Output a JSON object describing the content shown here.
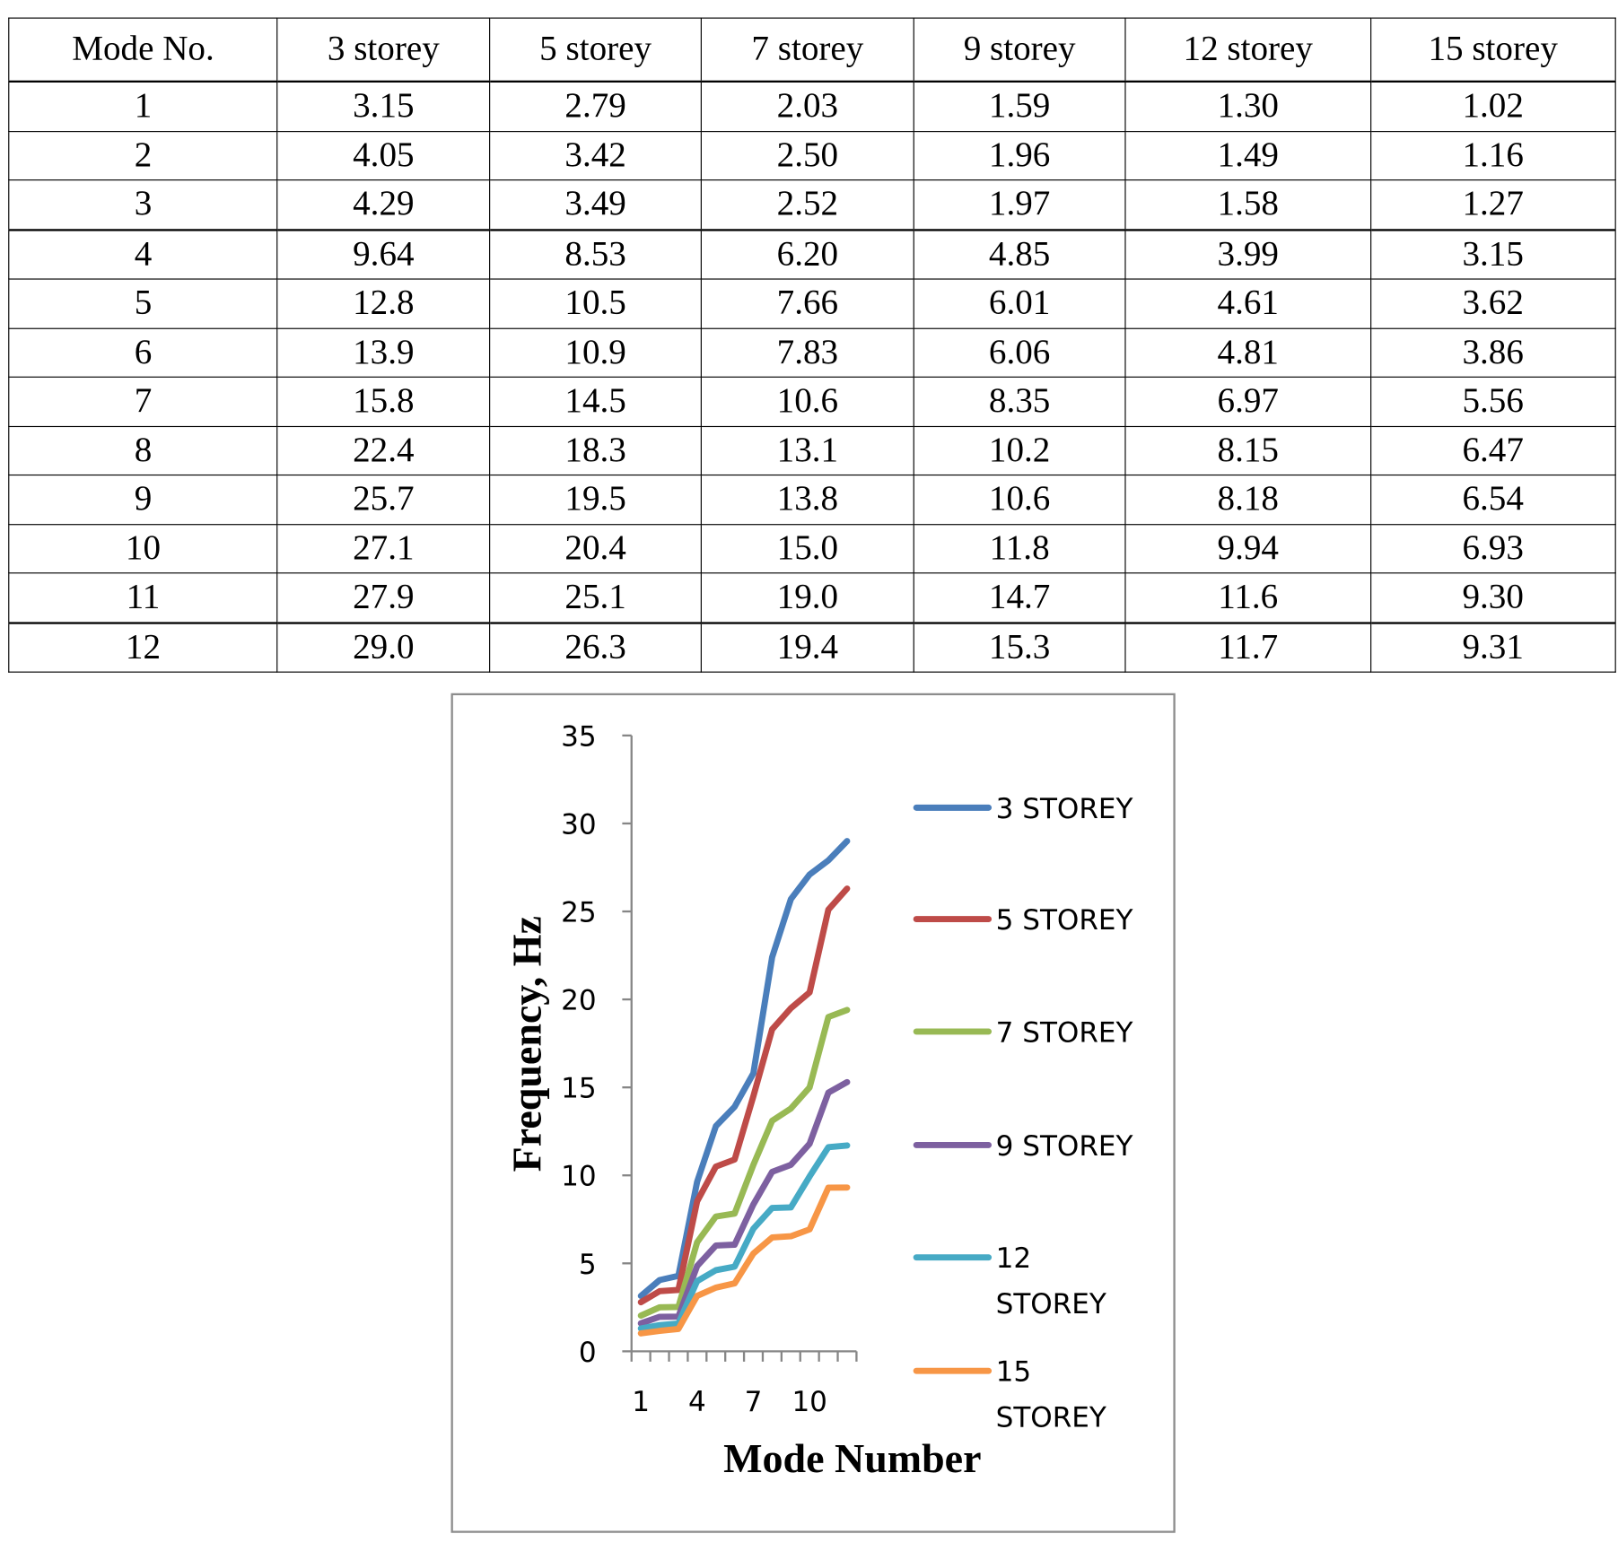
{
  "table": {
    "headers": [
      "Mode No.",
      "3 storey",
      "5 storey",
      "7 storey",
      "9 storey",
      "12 storey",
      "15 storey"
    ],
    "rows": [
      [
        "1",
        "3.15",
        "2.79",
        "2.03",
        "1.59",
        "1.30",
        "1.02"
      ],
      [
        "2",
        "4.05",
        "3.42",
        "2.50",
        "1.96",
        "1.49",
        "1.16"
      ],
      [
        "3",
        "4.29",
        "3.49",
        "2.52",
        "1.97",
        "1.58",
        "1.27"
      ],
      [
        "4",
        "9.64",
        "8.53",
        "6.20",
        "4.85",
        "3.99",
        "3.15"
      ],
      [
        "5",
        "12.8",
        "10.5",
        "7.66",
        "6.01",
        "4.61",
        "3.62"
      ],
      [
        "6",
        "13.9",
        "10.9",
        "7.83",
        "6.06",
        "4.81",
        "3.86"
      ],
      [
        "7",
        "15.8",
        "14.5",
        "10.6",
        "8.35",
        "6.97",
        "5.56"
      ],
      [
        "8",
        "22.4",
        "18.3",
        "13.1",
        "10.2",
        "8.15",
        "6.47"
      ],
      [
        "9",
        "25.7",
        "19.5",
        "13.8",
        "10.6",
        "8.18",
        "6.54"
      ],
      [
        "10",
        "27.1",
        "20.4",
        "15.0",
        "11.8",
        "9.94",
        "6.93"
      ],
      [
        "11",
        "27.9",
        "25.1",
        "19.0",
        "14.7",
        "11.6",
        "9.30"
      ],
      [
        "12",
        "29.0",
        "26.3",
        "19.4",
        "15.3",
        "11.7",
        "9.31"
      ]
    ]
  },
  "chart_data": {
    "type": "line",
    "title": "",
    "xlabel": "Mode Number",
    "ylabel": "Frequency, Hz",
    "x": [
      1,
      2,
      3,
      4,
      5,
      6,
      7,
      8,
      9,
      10,
      11,
      12
    ],
    "x_tick_labels": [
      "1",
      "4",
      "7",
      "10"
    ],
    "y_tick_labels": [
      "0",
      "5",
      "10",
      "15",
      "20",
      "25",
      "30",
      "35"
    ],
    "ylim": [
      0,
      35
    ],
    "grid": false,
    "legend_position": "right",
    "series": [
      {
        "name": "3 STOREY",
        "name_lines": [
          "3 STOREY"
        ],
        "color": "#4a7ebb",
        "values": [
          3.15,
          4.05,
          4.29,
          9.64,
          12.8,
          13.9,
          15.8,
          22.4,
          25.7,
          27.1,
          27.9,
          29.0
        ]
      },
      {
        "name": "5 STOREY",
        "name_lines": [
          "5 STOREY"
        ],
        "color": "#be4b48",
        "values": [
          2.79,
          3.42,
          3.49,
          8.53,
          10.5,
          10.9,
          14.5,
          18.3,
          19.5,
          20.4,
          25.1,
          26.3
        ]
      },
      {
        "name": "7 STOREY",
        "name_lines": [
          "7 STOREY"
        ],
        "color": "#98b954",
        "values": [
          2.03,
          2.5,
          2.52,
          6.2,
          7.66,
          7.83,
          10.6,
          13.1,
          13.8,
          15.0,
          19.0,
          19.4
        ]
      },
      {
        "name": "9 STOREY",
        "name_lines": [
          "9 STOREY"
        ],
        "color": "#7d60a0",
        "values": [
          1.59,
          1.96,
          1.97,
          4.85,
          6.01,
          6.06,
          8.35,
          10.2,
          10.6,
          11.8,
          14.7,
          15.3
        ]
      },
      {
        "name": "12 STOREY",
        "name_lines": [
          "12",
          "STOREY"
        ],
        "color": "#46aac5",
        "values": [
          1.3,
          1.49,
          1.58,
          3.99,
          4.61,
          4.81,
          6.97,
          8.15,
          8.18,
          9.94,
          11.6,
          11.7
        ]
      },
      {
        "name": "15 STOREY",
        "name_lines": [
          "15",
          "STOREY"
        ],
        "color": "#f79646",
        "values": [
          1.02,
          1.16,
          1.27,
          3.15,
          3.62,
          3.86,
          5.56,
          6.47,
          6.54,
          6.93,
          9.3,
          9.31
        ]
      }
    ]
  }
}
